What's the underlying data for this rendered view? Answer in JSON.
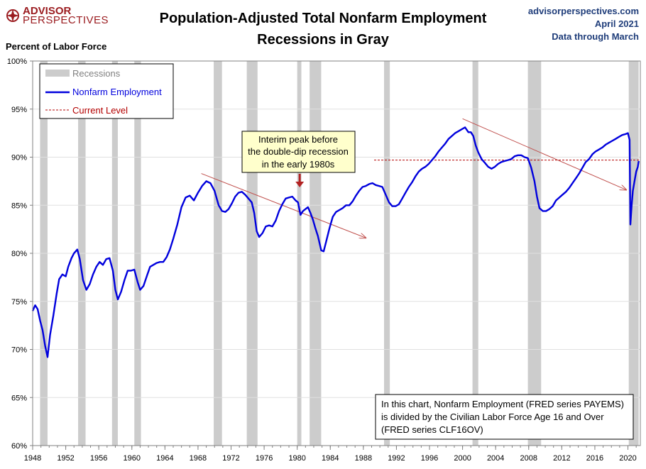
{
  "header": {
    "logo_line1": "ADVISOR",
    "logo_line2": "PERSPECTIVES",
    "title_line1": "Population-Adjusted Total Nonfarm Employment",
    "title_line2": "Recessions in Gray",
    "site": "advisorperspectives.com",
    "date": "April 2021",
    "data_through": "Data through March"
  },
  "chart_data": {
    "type": "line",
    "ylabel": "Percent of Labor Force",
    "ylim": [
      60,
      100
    ],
    "xlim": [
      1948,
      2021.5
    ],
    "y_ticks": [
      {
        "value": 60,
        "label": "60%"
      },
      {
        "value": 65,
        "label": "65%"
      },
      {
        "value": 70,
        "label": "70%"
      },
      {
        "value": 75,
        "label": "75%"
      },
      {
        "value": 80,
        "label": "80%"
      },
      {
        "value": 85,
        "label": "85%"
      },
      {
        "value": 90,
        "label": "90%"
      },
      {
        "value": 95,
        "label": "95%"
      },
      {
        "value": 100,
        "label": "100%"
      }
    ],
    "x_ticks": [
      {
        "value": 1948,
        "label": "1948"
      },
      {
        "value": 1952,
        "label": "1952"
      },
      {
        "value": 1956,
        "label": "1956"
      },
      {
        "value": 1960,
        "label": "1960"
      },
      {
        "value": 1964,
        "label": "1964"
      },
      {
        "value": 1968,
        "label": "1968"
      },
      {
        "value": 1972,
        "label": "1972"
      },
      {
        "value": 1976,
        "label": "1976"
      },
      {
        "value": 1980,
        "label": "1980"
      },
      {
        "value": 1984,
        "label": "1984"
      },
      {
        "value": 1988,
        "label": "1988"
      },
      {
        "value": 1992,
        "label": "1992"
      },
      {
        "value": 1996,
        "label": "1996"
      },
      {
        "value": 2000,
        "label": "2000"
      },
      {
        "value": 2004,
        "label": "2004"
      },
      {
        "value": 2008,
        "label": "2008"
      },
      {
        "value": 2012,
        "label": "2012"
      },
      {
        "value": 2016,
        "label": "2016"
      },
      {
        "value": 2020,
        "label": "2020"
      }
    ],
    "recessions": [
      [
        1948.9,
        1949.8
      ],
      [
        1953.5,
        1954.4
      ],
      [
        1957.6,
        1958.3
      ],
      [
        1960.3,
        1961.1
      ],
      [
        1969.9,
        1970.9
      ],
      [
        1973.9,
        1975.2
      ],
      [
        1980.0,
        1980.5
      ],
      [
        1981.5,
        1982.9
      ],
      [
        1990.5,
        1991.2
      ],
      [
        2001.2,
        2001.9
      ],
      [
        2007.9,
        2009.5
      ],
      [
        2020.1,
        2021.3
      ]
    ],
    "series": [
      {
        "name": "Nonfarm Employment",
        "color": "#0000dd",
        "points": [
          [
            1948.0,
            74.0
          ],
          [
            1948.3,
            74.6
          ],
          [
            1948.6,
            74.2
          ],
          [
            1948.9,
            73.0
          ],
          [
            1949.2,
            72.0
          ],
          [
            1949.5,
            70.4
          ],
          [
            1949.8,
            69.2
          ],
          [
            1950.1,
            71.5
          ],
          [
            1950.5,
            73.5
          ],
          [
            1950.9,
            75.8
          ],
          [
            1951.2,
            77.3
          ],
          [
            1951.6,
            77.8
          ],
          [
            1952.0,
            77.6
          ],
          [
            1952.3,
            78.6
          ],
          [
            1952.7,
            79.5
          ],
          [
            1953.0,
            80.0
          ],
          [
            1953.4,
            80.4
          ],
          [
            1953.7,
            79.4
          ],
          [
            1954.1,
            77.2
          ],
          [
            1954.5,
            76.2
          ],
          [
            1954.9,
            76.8
          ],
          [
            1955.3,
            77.8
          ],
          [
            1955.7,
            78.6
          ],
          [
            1956.1,
            79.1
          ],
          [
            1956.5,
            78.8
          ],
          [
            1956.9,
            79.4
          ],
          [
            1957.3,
            79.5
          ],
          [
            1957.7,
            78.2
          ],
          [
            1958.0,
            76.2
          ],
          [
            1958.3,
            75.2
          ],
          [
            1958.7,
            76.0
          ],
          [
            1959.1,
            77.2
          ],
          [
            1959.5,
            78.2
          ],
          [
            1959.9,
            78.2
          ],
          [
            1960.3,
            78.3
          ],
          [
            1960.7,
            77.0
          ],
          [
            1961.0,
            76.2
          ],
          [
            1961.4,
            76.6
          ],
          [
            1961.8,
            77.6
          ],
          [
            1962.2,
            78.6
          ],
          [
            1962.6,
            78.8
          ],
          [
            1963.0,
            79.0
          ],
          [
            1963.4,
            79.1
          ],
          [
            1963.8,
            79.1
          ],
          [
            1964.2,
            79.6
          ],
          [
            1964.6,
            80.4
          ],
          [
            1965.0,
            81.5
          ],
          [
            1965.5,
            83.0
          ],
          [
            1966.0,
            84.8
          ],
          [
            1966.5,
            85.8
          ],
          [
            1967.0,
            86.0
          ],
          [
            1967.5,
            85.5
          ],
          [
            1968.0,
            86.3
          ],
          [
            1968.5,
            87.0
          ],
          [
            1969.0,
            87.5
          ],
          [
            1969.5,
            87.3
          ],
          [
            1970.0,
            86.5
          ],
          [
            1970.5,
            85.0
          ],
          [
            1970.9,
            84.4
          ],
          [
            1971.3,
            84.3
          ],
          [
            1971.7,
            84.6
          ],
          [
            1972.1,
            85.2
          ],
          [
            1972.5,
            85.9
          ],
          [
            1972.9,
            86.3
          ],
          [
            1973.3,
            86.4
          ],
          [
            1973.7,
            86.1
          ],
          [
            1974.1,
            85.7
          ],
          [
            1974.5,
            85.3
          ],
          [
            1974.8,
            84.2
          ],
          [
            1975.1,
            82.3
          ],
          [
            1975.4,
            81.7
          ],
          [
            1975.8,
            82.1
          ],
          [
            1976.2,
            82.8
          ],
          [
            1976.6,
            82.9
          ],
          [
            1977.0,
            82.8
          ],
          [
            1977.4,
            83.4
          ],
          [
            1977.8,
            84.4
          ],
          [
            1978.2,
            85.1
          ],
          [
            1978.6,
            85.7
          ],
          [
            1979.0,
            85.8
          ],
          [
            1979.4,
            85.9
          ],
          [
            1979.8,
            85.5
          ],
          [
            1980.1,
            85.3
          ],
          [
            1980.4,
            84.0
          ],
          [
            1980.7,
            84.4
          ],
          [
            1981.0,
            84.6
          ],
          [
            1981.3,
            84.8
          ],
          [
            1981.6,
            84.2
          ],
          [
            1981.9,
            83.5
          ],
          [
            1982.2,
            82.6
          ],
          [
            1982.5,
            81.8
          ],
          [
            1982.9,
            80.3
          ],
          [
            1983.2,
            80.2
          ],
          [
            1983.5,
            81.2
          ],
          [
            1983.9,
            82.6
          ],
          [
            1984.3,
            83.8
          ],
          [
            1984.7,
            84.3
          ],
          [
            1985.1,
            84.5
          ],
          [
            1985.5,
            84.7
          ],
          [
            1985.9,
            85.0
          ],
          [
            1986.3,
            85.0
          ],
          [
            1986.7,
            85.4
          ],
          [
            1987.1,
            86.0
          ],
          [
            1987.5,
            86.5
          ],
          [
            1987.9,
            86.9
          ],
          [
            1988.3,
            87.0
          ],
          [
            1988.7,
            87.2
          ],
          [
            1989.1,
            87.3
          ],
          [
            1989.5,
            87.1
          ],
          [
            1989.9,
            87.0
          ],
          [
            1990.3,
            86.9
          ],
          [
            1990.7,
            86.1
          ],
          [
            1991.1,
            85.3
          ],
          [
            1991.5,
            84.9
          ],
          [
            1991.9,
            84.9
          ],
          [
            1992.3,
            85.1
          ],
          [
            1992.7,
            85.7
          ],
          [
            1993.1,
            86.3
          ],
          [
            1993.5,
            86.9
          ],
          [
            1993.9,
            87.4
          ],
          [
            1994.3,
            88.0
          ],
          [
            1994.7,
            88.5
          ],
          [
            1995.1,
            88.8
          ],
          [
            1995.5,
            89.0
          ],
          [
            1995.9,
            89.3
          ],
          [
            1996.3,
            89.7
          ],
          [
            1996.7,
            90.1
          ],
          [
            1997.1,
            90.6
          ],
          [
            1997.5,
            91.0
          ],
          [
            1997.9,
            91.4
          ],
          [
            1998.3,
            91.9
          ],
          [
            1998.7,
            92.2
          ],
          [
            1999.1,
            92.5
          ],
          [
            1999.5,
            92.7
          ],
          [
            1999.9,
            92.9
          ],
          [
            2000.3,
            93.1
          ],
          [
            2000.7,
            92.6
          ],
          [
            2001.0,
            92.6
          ],
          [
            2001.3,
            92.2
          ],
          [
            2001.6,
            91.2
          ],
          [
            2001.9,
            90.5
          ],
          [
            2002.3,
            89.8
          ],
          [
            2002.7,
            89.4
          ],
          [
            2003.1,
            89.0
          ],
          [
            2003.5,
            88.8
          ],
          [
            2003.9,
            89.0
          ],
          [
            2004.3,
            89.3
          ],
          [
            2004.7,
            89.5
          ],
          [
            2005.1,
            89.6
          ],
          [
            2005.5,
            89.7
          ],
          [
            2005.9,
            89.8
          ],
          [
            2006.3,
            90.1
          ],
          [
            2006.7,
            90.2
          ],
          [
            2007.1,
            90.2
          ],
          [
            2007.5,
            90.0
          ],
          [
            2007.9,
            89.9
          ],
          [
            2008.3,
            88.9
          ],
          [
            2008.7,
            87.5
          ],
          [
            2009.0,
            85.9
          ],
          [
            2009.3,
            84.7
          ],
          [
            2009.7,
            84.4
          ],
          [
            2010.1,
            84.4
          ],
          [
            2010.5,
            84.6
          ],
          [
            2010.9,
            84.9
          ],
          [
            2011.3,
            85.5
          ],
          [
            2011.7,
            85.8
          ],
          [
            2012.1,
            86.1
          ],
          [
            2012.5,
            86.4
          ],
          [
            2012.9,
            86.8
          ],
          [
            2013.3,
            87.3
          ],
          [
            2013.7,
            87.8
          ],
          [
            2014.1,
            88.3
          ],
          [
            2014.5,
            88.9
          ],
          [
            2014.9,
            89.5
          ],
          [
            2015.3,
            89.8
          ],
          [
            2015.7,
            90.3
          ],
          [
            2016.1,
            90.6
          ],
          [
            2016.5,
            90.8
          ],
          [
            2016.9,
            91.0
          ],
          [
            2017.3,
            91.3
          ],
          [
            2017.7,
            91.5
          ],
          [
            2018.1,
            91.7
          ],
          [
            2018.5,
            91.9
          ],
          [
            2018.9,
            92.1
          ],
          [
            2019.3,
            92.3
          ],
          [
            2019.7,
            92.4
          ],
          [
            2020.0,
            92.5
          ],
          [
            2020.2,
            91.8
          ],
          [
            2020.3,
            83.0
          ],
          [
            2020.45,
            85.0
          ],
          [
            2020.6,
            86.5
          ],
          [
            2020.8,
            87.5
          ],
          [
            2021.0,
            88.5
          ],
          [
            2021.2,
            89.0
          ],
          [
            2021.3,
            89.6
          ]
        ]
      }
    ],
    "current_level": 89.7,
    "trend_arrows": [
      {
        "from": [
          1968.4,
          88.3
        ],
        "to": [
          1988.3,
          81.6
        ]
      },
      {
        "from": [
          2000.0,
          94.0
        ],
        "to": [
          2019.8,
          86.6
        ]
      }
    ],
    "callout_arrow": {
      "x": 1980.3,
      "y_top": 88.0,
      "y_bottom": 86.2
    }
  },
  "legend": {
    "recessions": "Recessions",
    "series": "Nonfarm Employment",
    "current": "Current Level",
    "colors": {
      "recession": "#cccccc",
      "series": "#0000dd",
      "current": "#b30000",
      "trend": "#c0504d"
    }
  },
  "callout": {
    "lines": [
      "Interim peak before",
      "the double-dip recession",
      "in the early 1980s"
    ],
    "bg": "#ffffcc"
  },
  "note": {
    "lines": [
      "In this chart, Nonfarm Employment (FRED series PAYEMS)",
      "is divided by the Civilian Labor Force Age 16 and Over",
      "(FRED series CLF16OV)"
    ]
  }
}
